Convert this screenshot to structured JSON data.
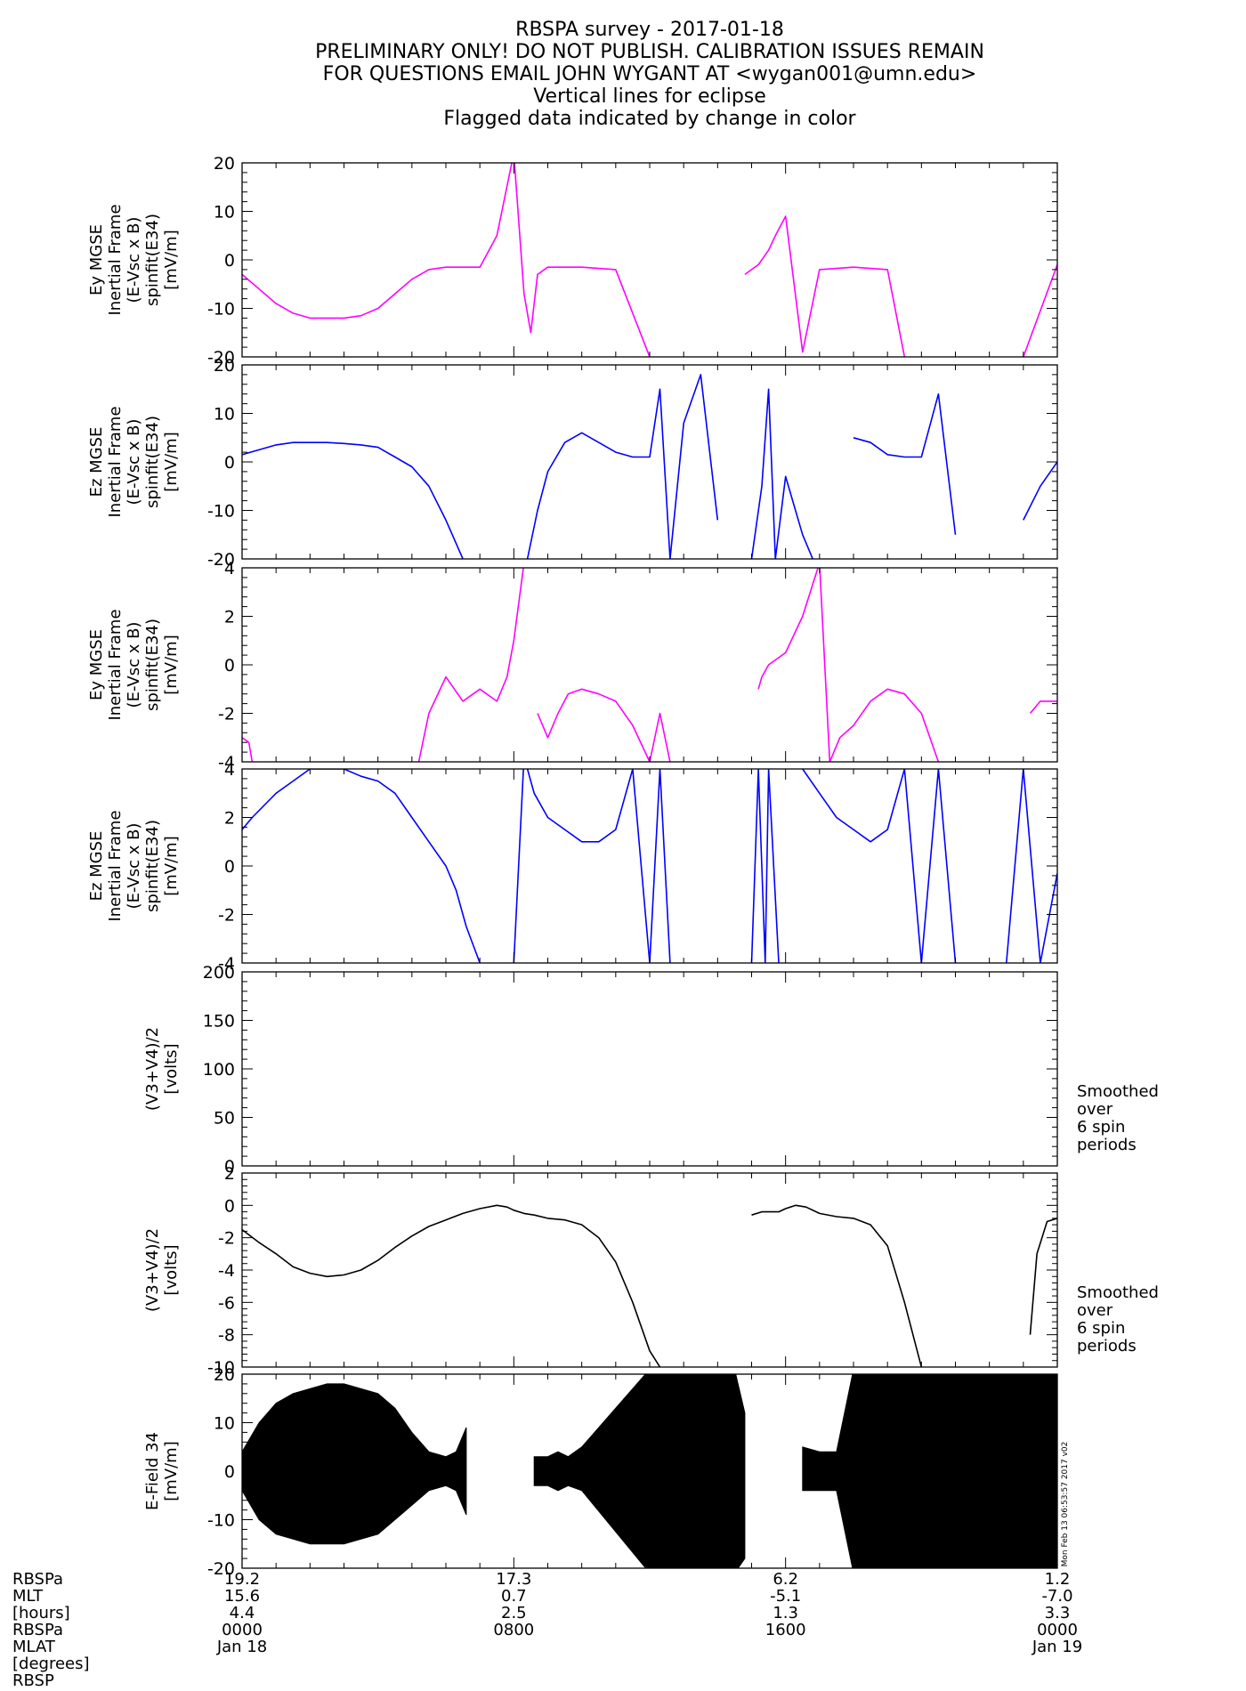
{
  "title_lines": [
    "RBSPA survey - 2017-01-18",
    "PRELIMINARY ONLY! DO NOT PUBLISH. CALIBRATION ISSUES REMAIN",
    "FOR QUESTIONS EMAIL JOHN WYGANT AT <wygan001@umn.edu>",
    "Vertical lines for eclipse",
    "Flagged data indicated by change in color"
  ],
  "chart_data": [
    {
      "type": "line",
      "ylabel_lines": [
        "Ey MGSE",
        "Inertial Frame",
        "(E-Vsc x B)",
        "spinfit(E34)",
        "[mV/m]"
      ],
      "ylim": [
        -20,
        20
      ],
      "yticks": [
        -20,
        -10,
        0,
        10,
        20
      ],
      "color": "#ff00ff",
      "grid": false,
      "x_units": "hours",
      "series": [
        {
          "x": [
            0,
            0.5,
            1,
            1.5,
            2,
            2.5,
            3,
            3.5,
            4,
            4.5,
            5,
            5.5,
            6,
            6.5,
            7,
            7.5,
            8,
            8.3,
            8.5,
            8.7,
            9,
            10,
            11,
            12,
            12.3,
            12.5,
            13,
            13.5,
            14,
            14.5,
            14.8,
            15,
            15.2,
            15.5,
            15.7,
            16,
            16.5,
            17,
            18,
            19,
            19.5,
            20,
            20.5,
            21,
            23,
            24
          ],
          "y": [
            -3,
            -6,
            -9,
            -11,
            -12,
            -12,
            -12,
            -11.5,
            -10,
            -7,
            -4,
            -2,
            -1.5,
            -1.5,
            -1.5,
            5,
            22,
            -7,
            -15,
            -3,
            -1.5,
            -1.5,
            -2,
            -20,
            null,
            null,
            null,
            null,
            null,
            null,
            -3,
            -2,
            -1,
            2,
            5,
            9,
            -19,
            -2,
            -1.5,
            -2,
            -20,
            null,
            null,
            null,
            -20,
            -1
          ]
        }
      ],
      "annotation": ""
    },
    {
      "type": "line",
      "ylabel_lines": [
        "Ez MGSE",
        "Inertial Frame",
        "(E-Vsc x B)",
        "spinfit(E34)",
        "[mV/m]"
      ],
      "ylim": [
        -20,
        20
      ],
      "yticks": [
        -20,
        -10,
        0,
        10,
        20
      ],
      "color": "#0000ff",
      "grid": false,
      "x_units": "hours",
      "series": [
        {
          "x": [
            0,
            0.5,
            1,
            1.5,
            2,
            2.5,
            3,
            3.5,
            4,
            4.5,
            5,
            5.5,
            6,
            6.5,
            6.8,
            7,
            7.3,
            7.6,
            8,
            8.4,
            8.7,
            9,
            9.5,
            10,
            10.5,
            11,
            11.5,
            12,
            12.3,
            12.6,
            13,
            13.5,
            14,
            14.5,
            14.8,
            15,
            15.3,
            15.5,
            15.7,
            16,
            16.5,
            16.8,
            17,
            17.5,
            18,
            18.5,
            19,
            19.5,
            20,
            20.5,
            21,
            22,
            22.5,
            23,
            23.5,
            24
          ],
          "y": [
            1.5,
            2.5,
            3.5,
            4,
            4,
            4,
            3.8,
            3.5,
            3,
            1,
            -1,
            -5,
            -12,
            -20,
            null,
            null,
            null,
            null,
            null,
            -20,
            -10,
            -2,
            4,
            6,
            4,
            2,
            1,
            1,
            15,
            -20,
            8,
            18,
            -12,
            null,
            null,
            -20,
            -5,
            15,
            -20,
            -3,
            -15,
            -20,
            null,
            null,
            5,
            4,
            1.5,
            1,
            1,
            14,
            -15,
            null,
            null,
            -12,
            -5,
            0
          ]
        }
      ],
      "annotation": ""
    },
    {
      "type": "line",
      "ylabel_lines": [
        "Ey MGSE",
        "Inertial Frame",
        "(E-Vsc x B)",
        "spinfit(E34)",
        "[mV/m]"
      ],
      "ylim": [
        -4,
        4
      ],
      "yticks": [
        -4,
        -2,
        0,
        2,
        4
      ],
      "color": "#ff00ff",
      "grid": false,
      "x_units": "hours",
      "series": [
        {
          "x": [
            0,
            0.2,
            0.3,
            1,
            2,
            3,
            4,
            5,
            5.2,
            5.5,
            6,
            6.5,
            7,
            7.5,
            7.8,
            8,
            8.3,
            8.5,
            8.7,
            9,
            9.3,
            9.6,
            10,
            10.5,
            11,
            11.5,
            12,
            12.3,
            12.6,
            13,
            14,
            15,
            15.2,
            15.3,
            15.5,
            16,
            16.5,
            17,
            17.3,
            17.6,
            18,
            18.5,
            19,
            19.5,
            20,
            20.5,
            21,
            22,
            23,
            23.2,
            23.5,
            24
          ],
          "y": [
            -3,
            -3.2,
            -4,
            null,
            null,
            null,
            null,
            null,
            -4,
            -2,
            -0.5,
            -1.5,
            -1,
            -1.5,
            -0.5,
            1,
            4.2,
            null,
            -2,
            -3,
            -2,
            -1.2,
            -1,
            -1.2,
            -1.5,
            -2.5,
            -4,
            -2,
            -4,
            null,
            null,
            null,
            -1,
            -0.5,
            0,
            0.5,
            2,
            4.2,
            -4,
            -3,
            -2.5,
            -1.5,
            -1,
            -1.2,
            -2,
            -4,
            null,
            null,
            null,
            -2,
            -1.5,
            -1.5
          ]
        }
      ],
      "annotation": ""
    },
    {
      "type": "line",
      "ylabel_lines": [
        "Ez MGSE",
        "Inertial Frame",
        "(E-Vsc x B)",
        "spinfit(E34)",
        "[mV/m]"
      ],
      "ylim": [
        -4,
        4
      ],
      "yticks": [
        -4,
        -2,
        0,
        2,
        4
      ],
      "color": "#0000ff",
      "grid": false,
      "x_units": "hours",
      "series": [
        {
          "x": [
            0,
            0.3,
            1,
            1.5,
            2,
            2.5,
            3,
            3.5,
            4,
            4.5,
            5,
            5.5,
            6,
            6.3,
            6.6,
            7,
            7.3,
            8,
            8.3,
            8.6,
            9,
            9.5,
            10,
            10.5,
            11,
            11.5,
            12,
            12.3,
            12.6,
            13,
            13.5,
            14,
            14.5,
            15,
            15.2,
            15.4,
            15.5,
            15.8,
            16,
            16.5,
            17,
            17.5,
            18,
            18.5,
            19,
            19.5,
            20,
            20.5,
            21,
            22,
            22.5,
            23,
            23.5,
            24
          ],
          "y": [
            1.5,
            2,
            3,
            3.5,
            4,
            4,
            4,
            3.7,
            3.5,
            3,
            2,
            1,
            0,
            -1,
            -2.5,
            -4,
            null,
            -4,
            4.5,
            3,
            2,
            1.5,
            1,
            1,
            1.5,
            4,
            -4,
            4,
            -4,
            null,
            null,
            null,
            null,
            -4,
            4,
            -4,
            4,
            -4,
            null,
            4,
            3,
            2,
            1.5,
            1,
            1.5,
            4,
            -4,
            4,
            -4,
            null,
            -4,
            4,
            -4,
            -0.3
          ]
        }
      ],
      "annotation": ""
    },
    {
      "type": "line",
      "ylabel_lines": [
        "(V3+V4)/2",
        "[volts]"
      ],
      "ylim": [
        0,
        200
      ],
      "yticks": [
        0,
        50,
        100,
        150,
        200
      ],
      "color": "#000000",
      "grid": false,
      "x_units": "hours",
      "series": [
        {
          "x": [
            0,
            2,
            4,
            6,
            8,
            9,
            10,
            11,
            12,
            12.5,
            15,
            15.5,
            17,
            18,
            18.5,
            23,
            23.5,
            24
          ],
          "y": [
            -1,
            -2,
            -1.5,
            -0.5,
            -0.5,
            -1,
            -1,
            -1,
            -1,
            null,
            null,
            -1,
            -1,
            -1,
            null,
            null,
            -1,
            -1
          ]
        }
      ],
      "annotation": [
        "Smoothed",
        "over",
        "6 spin",
        "periods"
      ]
    },
    {
      "type": "line",
      "ylabel_lines": [
        "(V3+V4)/2",
        "[volts]"
      ],
      "ylim": [
        -10,
        2
      ],
      "yticks": [
        -10,
        -8,
        -6,
        -4,
        -2,
        0,
        2
      ],
      "color": "#000000",
      "grid": false,
      "x_units": "hours",
      "series": [
        {
          "x": [
            0,
            0.5,
            1,
            1.5,
            2,
            2.5,
            3,
            3.5,
            4,
            4.5,
            5,
            5.5,
            6,
            6.5,
            7,
            7.5,
            7.8,
            8,
            8.3,
            8.6,
            9,
            9.5,
            10,
            10.5,
            11,
            11.5,
            12,
            12.3,
            12.6,
            13,
            14,
            14.8,
            15,
            15.3,
            15.8,
            16,
            16.3,
            16.6,
            17,
            17.5,
            18,
            18.5,
            19,
            19.5,
            20,
            20.5,
            21,
            22,
            23,
            23.2,
            23.4,
            23.7,
            24
          ],
          "y": [
            -1.5,
            -2.3,
            -3,
            -3.8,
            -4.2,
            -4.4,
            -4.3,
            -4,
            -3.4,
            -2.6,
            -1.9,
            -1.3,
            -0.9,
            -0.5,
            -0.2,
            0,
            -0.1,
            -0.3,
            -0.5,
            -0.6,
            -0.8,
            -0.9,
            -1.2,
            -2,
            -3.5,
            -6,
            -9,
            -10,
            null,
            null,
            null,
            null,
            -0.6,
            -0.4,
            -0.4,
            -0.2,
            0,
            -0.1,
            -0.5,
            -0.7,
            -0.8,
            -1.2,
            -2.5,
            -6,
            -10,
            null,
            null,
            null,
            null,
            -8,
            -3,
            -1,
            -0.8
          ]
        }
      ],
      "annotation": [
        "Smoothed",
        "over",
        "6 spin",
        "periods"
      ]
    },
    {
      "type": "area",
      "ylabel_lines": [
        "E-Field 34",
        "[mV/m]"
      ],
      "ylim": [
        -20,
        20
      ],
      "yticks": [
        -20,
        -10,
        0,
        10,
        20
      ],
      "color": "#000000",
      "grid": false,
      "x_units": "hours",
      "series": [
        {
          "name": "",
          "x": [
            0,
            0.5,
            1,
            1.5,
            2,
            2.5,
            3,
            3.5,
            4,
            4.5,
            5,
            5.5,
            6,
            6.3,
            6.6,
            6.9,
            7,
            7.3,
            7.6,
            8,
            8.3,
            8.6,
            9,
            9.3,
            9.6,
            10,
            12,
            12.2,
            12.3,
            12.5,
            12.8,
            13,
            14,
            14.5,
            14.8,
            15,
            15.3,
            15.6,
            16,
            16.5,
            17,
            17.5,
            18,
            22,
            22.3,
            24
          ],
          "upper": [
            4,
            10,
            14,
            16,
            17,
            18,
            18,
            17,
            16,
            13,
            8,
            4,
            3,
            4,
            9,
            null,
            null,
            null,
            null,
            null,
            null,
            3,
            3,
            4,
            3,
            5,
            21,
            21,
            21,
            21,
            21,
            21,
            21,
            21,
            12,
            null,
            null,
            null,
            null,
            5,
            4,
            4,
            21,
            21,
            21,
            21
          ]
        },
        {
          "name": "",
          "x": [
            0,
            0.5,
            1,
            1.5,
            2,
            2.5,
            3,
            3.5,
            4,
            4.5,
            5,
            5.5,
            6,
            6.3,
            6.6,
            6.9,
            7,
            7.3,
            7.6,
            8,
            8.3,
            8.6,
            9,
            9.3,
            9.6,
            10,
            12,
            12.2,
            12.3,
            12.5,
            12.8,
            13,
            14,
            14.5,
            14.8,
            15,
            15.3,
            15.6,
            16,
            16.5,
            17,
            17.5,
            18,
            22,
            22.3,
            24
          ],
          "lower": [
            -4,
            -10,
            -13,
            -14,
            -15,
            -15,
            -15,
            -14,
            -13,
            -10,
            -7,
            -4,
            -3,
            -4,
            -9,
            null,
            null,
            null,
            null,
            null,
            null,
            -3,
            -3,
            -4,
            -3,
            -4,
            -21,
            -21,
            -21,
            -21,
            -21,
            -21,
            -21,
            -21,
            -18,
            null,
            null,
            null,
            null,
            -4,
            -4,
            -4,
            -21,
            -21,
            -21,
            -21
          ]
        }
      ],
      "annotation": ""
    }
  ],
  "x_axis": {
    "range_hours": [
      0,
      24
    ],
    "tick_hours": [
      0,
      8,
      16,
      24
    ],
    "minor_step_hours": 1,
    "labels": [
      {
        "hour": 0,
        "rows": [
          "19.2",
          "15.6",
          "4.4",
          "0000",
          "Jan 18"
        ]
      },
      {
        "hour": 8,
        "rows": [
          "17.3",
          "0.7",
          "2.5",
          "0800",
          ""
        ]
      },
      {
        "hour": 16,
        "rows": [
          "6.2",
          "-5.1",
          "1.3",
          "1600",
          ""
        ]
      },
      {
        "hour": 24,
        "rows": [
          "1.2",
          "-7.0",
          "3.3",
          "0000",
          "Jan 19"
        ]
      }
    ],
    "row_labels": [
      "RBSPa",
      "MLT",
      "[hours]",
      "RBSPa",
      "MLAT",
      "[degrees]",
      "RBSP"
    ]
  },
  "timestamp": "Mon Feb 13 06:53:57 2017 v02"
}
